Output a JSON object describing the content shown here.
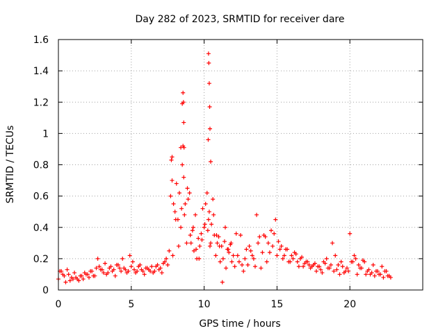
{
  "chart_data": {
    "type": "scatter",
    "title": "Day 282 of 2023, SRMTID for receiver dare",
    "xlabel": "GPS time / hours",
    "ylabel": "SRMTID / TECUs",
    "xlim": [
      0,
      25
    ],
    "ylim": [
      0,
      1.6
    ],
    "xticks": [
      0,
      5,
      10,
      15,
      20
    ],
    "xtick_labels": [
      "0",
      "5",
      "10",
      "15",
      "20"
    ],
    "yticks": [
      0,
      0.2,
      0.4,
      0.6,
      0.8,
      1,
      1.2,
      1.4,
      1.6
    ],
    "ytick_labels": [
      "0",
      "0.2",
      "0.4",
      "0.6",
      "0.8",
      "1",
      "1.2",
      "1.4",
      "1.6"
    ],
    "grid": true,
    "marker": "+",
    "color": "#ff0000",
    "series": [
      {
        "name": "SRMTID",
        "x": [
          0.0,
          0.2,
          0.4,
          0.6,
          0.8,
          1.0,
          1.2,
          1.4,
          1.6,
          1.8,
          2.0,
          2.2,
          2.4,
          2.6,
          2.7,
          2.8,
          3.0,
          3.2,
          3.4,
          3.6,
          3.8,
          4.0,
          4.2,
          4.4,
          4.6,
          4.8,
          5.0,
          5.2,
          5.4,
          5.6,
          5.8,
          6.0,
          6.2,
          6.4,
          6.6,
          6.8,
          7.0,
          7.2,
          7.4,
          7.6,
          7.7,
          7.8,
          7.9,
          8.0,
          8.1,
          8.2,
          8.3,
          8.4,
          8.5,
          8.55,
          8.6,
          8.7,
          8.8,
          8.9,
          9.0,
          9.1,
          9.2,
          9.3,
          9.4,
          9.5,
          9.6,
          9.7,
          9.8,
          9.9,
          10.0,
          10.1,
          10.2,
          10.25,
          10.3,
          10.35,
          10.4,
          10.5,
          10.6,
          10.7,
          10.8,
          10.9,
          11.0,
          11.1,
          11.2,
          11.3,
          11.4,
          11.5,
          11.6,
          11.7,
          11.8,
          11.9,
          12.0,
          12.2,
          12.4,
          12.6,
          12.8,
          13.0,
          13.2,
          13.4,
          13.6,
          13.7,
          13.8,
          14.0,
          14.2,
          14.4,
          14.6,
          14.8,
          14.9,
          15.0,
          15.2,
          15.4,
          15.6,
          15.8,
          16.0,
          16.2,
          16.4,
          16.6,
          16.8,
          17.0,
          17.2,
          17.4,
          17.6,
          17.8,
          18.0,
          18.2,
          18.4,
          18.6,
          18.7,
          18.8,
          19.0,
          19.2,
          19.4,
          19.6,
          19.8,
          19.9,
          20.0,
          20.2,
          20.4,
          20.6,
          20.8,
          21.0,
          21.2,
          21.4,
          21.6,
          21.8,
          22.0,
          22.2,
          22.4,
          22.6,
          22.8,
          0.1,
          0.3,
          0.5,
          0.7,
          0.9,
          1.1,
          1.3,
          1.5,
          1.7,
          1.9,
          2.1,
          2.3,
          2.5,
          2.9,
          3.1,
          3.3,
          3.5,
          3.7,
          3.9,
          4.1,
          4.3,
          4.5,
          4.7,
          4.9,
          5.1,
          5.3,
          5.5,
          5.7,
          5.9,
          6.1,
          6.3,
          6.5,
          6.7,
          6.9,
          7.1,
          7.3,
          7.5,
          7.85,
          8.05,
          8.25,
          8.45,
          8.65,
          8.85,
          9.05,
          9.25,
          9.45,
          9.65,
          9.85,
          10.05,
          10.45,
          10.65,
          10.85,
          11.05,
          11.25,
          11.45,
          11.65,
          11.85,
          12.1,
          12.3,
          12.5,
          12.7,
          12.9,
          13.1,
          13.3,
          13.5,
          13.9,
          14.1,
          14.3,
          14.5,
          14.7,
          15.1,
          15.3,
          15.5,
          15.7,
          15.9,
          16.1,
          16.3,
          16.5,
          16.7,
          16.9,
          17.1,
          17.3,
          17.5,
          17.7,
          17.9,
          18.1,
          18.3,
          18.5,
          18.9,
          19.1,
          19.3,
          19.5,
          19.7,
          20.1,
          20.3,
          20.5,
          20.7,
          20.9,
          21.1,
          21.3,
          21.5,
          21.7,
          21.9,
          22.1,
          22.3,
          22.5,
          22.7,
          8.55,
          8.58,
          8.6,
          8.62,
          10.3,
          10.32,
          10.35,
          10.38,
          10.4,
          10.45,
          8.5,
          10.28,
          7.8,
          7.75,
          8.4
        ],
        "y": [
          0.07,
          0.12,
          0.09,
          0.13,
          0.06,
          0.07,
          0.08,
          0.06,
          0.09,
          0.11,
          0.1,
          0.12,
          0.09,
          0.14,
          0.2,
          0.15,
          0.13,
          0.17,
          0.11,
          0.15,
          0.13,
          0.16,
          0.14,
          0.2,
          0.13,
          0.12,
          0.15,
          0.13,
          0.12,
          0.16,
          0.12,
          0.14,
          0.13,
          0.15,
          0.12,
          0.16,
          0.14,
          0.17,
          0.2,
          0.25,
          0.6,
          0.7,
          0.55,
          0.5,
          0.68,
          0.45,
          0.62,
          0.4,
          0.8,
          0.92,
          0.72,
          0.55,
          0.3,
          0.58,
          0.62,
          0.3,
          0.38,
          0.25,
          0.48,
          0.2,
          0.33,
          0.28,
          0.36,
          0.52,
          0.4,
          0.55,
          0.62,
          0.38,
          0.45,
          0.5,
          0.28,
          0.42,
          0.58,
          0.35,
          0.22,
          0.3,
          0.34,
          0.18,
          0.28,
          0.2,
          0.31,
          0.14,
          0.26,
          0.24,
          0.29,
          0.18,
          0.22,
          0.36,
          0.18,
          0.16,
          0.2,
          0.16,
          0.25,
          0.2,
          0.48,
          0.3,
          0.34,
          0.24,
          0.34,
          0.3,
          0.38,
          0.36,
          0.45,
          0.22,
          0.26,
          0.2,
          0.26,
          0.18,
          0.22,
          0.24,
          0.18,
          0.2,
          0.15,
          0.18,
          0.16,
          0.15,
          0.17,
          0.15,
          0.13,
          0.18,
          0.2,
          0.14,
          0.16,
          0.3,
          0.22,
          0.16,
          0.18,
          0.11,
          0.14,
          0.12,
          0.36,
          0.18,
          0.2,
          0.16,
          0.14,
          0.18,
          0.12,
          0.1,
          0.16,
          0.12,
          0.1,
          0.15,
          0.12,
          0.09,
          0.08,
          0.12,
          0.1,
          0.05,
          0.1,
          0.08,
          0.11,
          0.07,
          0.09,
          0.07,
          0.1,
          0.08,
          0.12,
          0.09,
          0.13,
          0.11,
          0.1,
          0.14,
          0.12,
          0.09,
          0.16,
          0.12,
          0.14,
          0.11,
          0.22,
          0.18,
          0.11,
          0.15,
          0.13,
          0.1,
          0.14,
          0.12,
          0.11,
          0.15,
          0.13,
          0.11,
          0.18,
          0.16,
          0.22,
          0.45,
          0.28,
          0.52,
          0.48,
          0.65,
          0.35,
          0.4,
          0.26,
          0.2,
          0.32,
          0.42,
          0.3,
          0.48,
          0.35,
          0.28,
          0.05,
          0.4,
          0.26,
          0.3,
          0.15,
          0.22,
          0.35,
          0.12,
          0.26,
          0.28,
          0.22,
          0.15,
          0.14,
          0.35,
          0.18,
          0.24,
          0.28,
          0.31,
          0.28,
          0.22,
          0.26,
          0.18,
          0.2,
          0.23,
          0.15,
          0.21,
          0.17,
          0.18,
          0.14,
          0.16,
          0.12,
          0.15,
          0.11,
          0.17,
          0.14,
          0.12,
          0.13,
          0.1,
          0.15,
          0.12,
          0.18,
          0.22,
          0.1,
          0.14,
          0.19,
          0.1,
          0.13,
          0.11,
          0.09,
          0.12,
          0.1,
          0.08,
          0.12,
          0.09,
          1.26,
          1.2,
          1.07,
          0.91,
          1.51,
          1.45,
          1.32,
          1.17,
          1.03,
          0.82,
          1.19,
          0.96,
          0.85,
          0.83,
          0.91
        ]
      }
    ]
  }
}
